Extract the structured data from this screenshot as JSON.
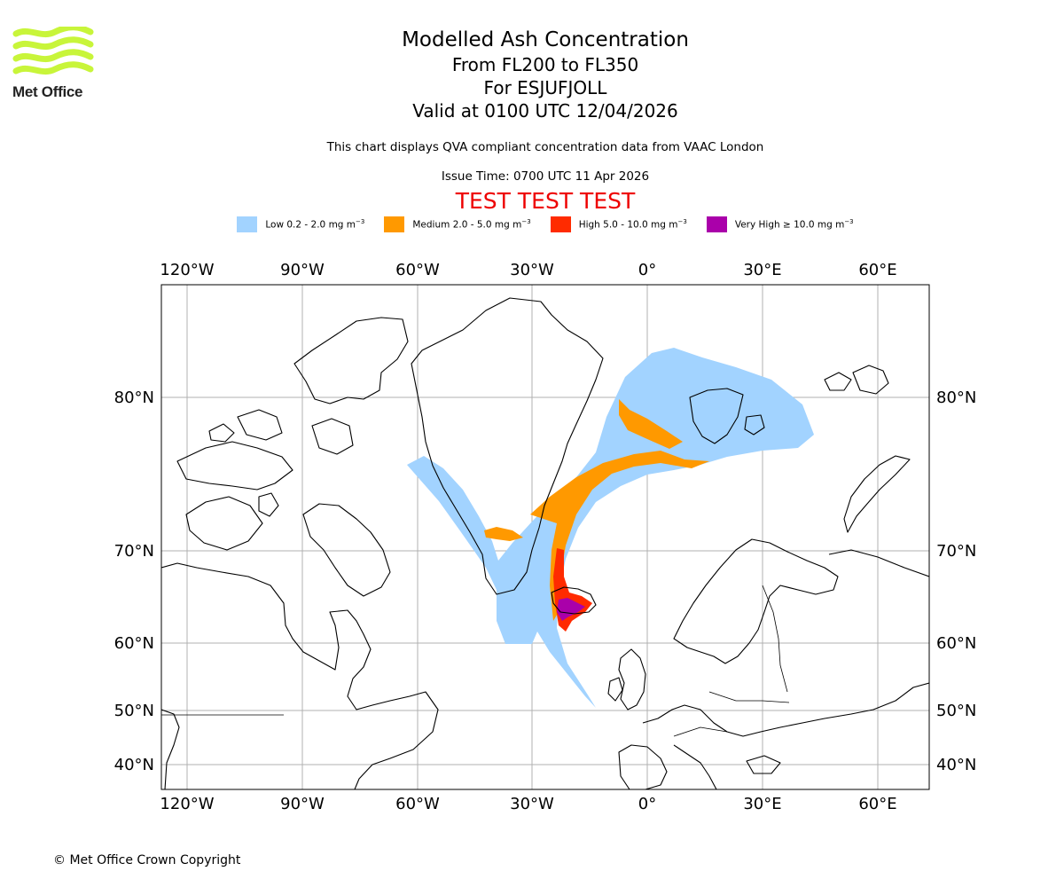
{
  "brand": {
    "name": "Met Office",
    "logo_color": "#c8f53a"
  },
  "title": {
    "main": "Modelled Ash Concentration",
    "levels": "From FL200 to FL350",
    "volcano": "For ESJUFJOLL",
    "valid": "Valid at 0100 UTC 12/04/2026"
  },
  "note": "This chart displays QVA compliant concentration data from VAAC London",
  "issue": "Issue Time: 0700 UTC 11 Apr 2026",
  "test_banner": "TEST TEST TEST",
  "legend": [
    {
      "label": "Low 0.2 - 2.0 mg m",
      "color": "#a2d3ff"
    },
    {
      "label": "Medium 2.0 - 5.0 mg m",
      "color": "#ff9900"
    },
    {
      "label": "High 5.0 - 10.0 mg m",
      "color": "#ff2b00"
    },
    {
      "label": "Very High ≥ 10.0 mg m",
      "color": "#aa00aa"
    }
  ],
  "unit_superscript": "−3",
  "map": {
    "lon_ticks": [
      "120°W",
      "90°W",
      "60°W",
      "30°W",
      "0°",
      "30°E",
      "60°E"
    ],
    "lat_ticks": [
      "80°N",
      "70°N",
      "60°N",
      "50°N",
      "40°N"
    ],
    "gridlines": true
  },
  "copyright": "© Met Office Crown Copyright"
}
